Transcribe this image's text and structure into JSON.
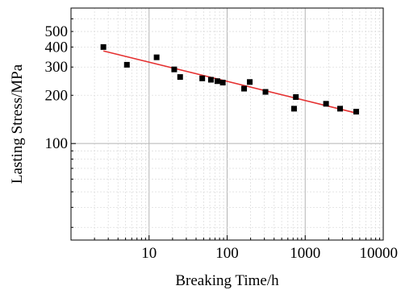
{
  "chart_data": {
    "type": "scatter",
    "title": "",
    "xlabel": "Breaking Time/h",
    "ylabel": "Lasting Stress/MPa",
    "x_scale": "log",
    "y_scale": "log",
    "xlim": [
      1,
      10000
    ],
    "ylim": [
      25,
      700
    ],
    "x_ticks": [
      10,
      100,
      1000,
      10000
    ],
    "x_tick_labels": [
      "10",
      "100",
      "1000",
      "10000"
    ],
    "y_ticks": [
      100,
      200,
      300,
      400,
      500
    ],
    "y_tick_labels": [
      "100",
      "200",
      "300",
      "400",
      "500"
    ],
    "grid": true,
    "legend": "none",
    "series": [
      {
        "name": "",
        "color": "#000000",
        "marker": "square",
        "points": [
          {
            "x": 2.6,
            "y": 400
          },
          {
            "x": 5.2,
            "y": 310
          },
          {
            "x": 12.5,
            "y": 345
          },
          {
            "x": 21,
            "y": 290
          },
          {
            "x": 25,
            "y": 260
          },
          {
            "x": 48,
            "y": 255
          },
          {
            "x": 62,
            "y": 250
          },
          {
            "x": 75,
            "y": 245
          },
          {
            "x": 88,
            "y": 240
          },
          {
            "x": 165,
            "y": 220
          },
          {
            "x": 195,
            "y": 242
          },
          {
            "x": 310,
            "y": 210
          },
          {
            "x": 720,
            "y": 165
          },
          {
            "x": 760,
            "y": 195
          },
          {
            "x": 1850,
            "y": 177
          },
          {
            "x": 2800,
            "y": 165
          },
          {
            "x": 4500,
            "y": 158
          }
        ]
      }
    ],
    "fit_line": {
      "color": "#e53030",
      "points": [
        {
          "x": 2.6,
          "y": 378
        },
        {
          "x": 4500,
          "y": 155
        }
      ]
    }
  }
}
